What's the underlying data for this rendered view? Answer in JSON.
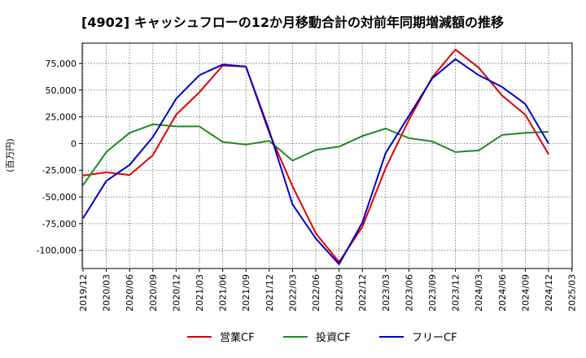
{
  "chart_data": {
    "type": "line",
    "title": "[4902]  キャッシュフローの12か月移動合計の対前年同期増減額の推移",
    "ylabel": "(百万円)",
    "xlabel": "",
    "x": [
      "2019/12",
      "2020/03",
      "2020/06",
      "2020/09",
      "2020/12",
      "2021/03",
      "2021/06",
      "2021/09",
      "2021/12",
      "2022/03",
      "2022/06",
      "2022/09",
      "2022/12",
      "2023/03",
      "2023/06",
      "2023/09",
      "2023/12",
      "2024/03",
      "2024/06",
      "2024/09",
      "2024/12"
    ],
    "x_ticks": [
      "2019/12",
      "2020/03",
      "2020/06",
      "2020/09",
      "2020/12",
      "2021/03",
      "2021/06",
      "2021/09",
      "2021/12",
      "2022/03",
      "2022/06",
      "2022/09",
      "2022/12",
      "2023/03",
      "2023/06",
      "2023/09",
      "2023/12",
      "2024/03",
      "2024/06",
      "2024/09",
      "2024/12",
      "2025/03"
    ],
    "y_ticks": [
      75000,
      50000,
      25000,
      0,
      -25000,
      -50000,
      -75000,
      -100000
    ],
    "y_tick_labels": [
      "75,000",
      "50,000",
      "25,000",
      "0",
      "-25,000",
      "-50,000",
      "-75,000",
      "-100,000"
    ],
    "ylim": [
      -117000,
      94000
    ],
    "grid": true,
    "legend_position": "bottom",
    "series": [
      {
        "name": "営業CF",
        "color": "#dd0000",
        "values": [
          -30000,
          -27000,
          -29500,
          -11000,
          27000,
          48000,
          73000,
          72000,
          10000,
          -40000,
          -84000,
          -111000,
          -78000,
          -23000,
          22000,
          62000,
          88000,
          71000,
          45000,
          27000,
          -10000
        ]
      },
      {
        "name": "投資CF",
        "color": "#228822",
        "values": [
          -39000,
          -8000,
          10000,
          18000,
          16000,
          16000,
          1500,
          -1000,
          2500,
          -16000,
          -6000,
          -3000,
          7000,
          14000,
          5000,
          2000,
          -8000,
          -6500,
          8000,
          10000,
          11000
        ]
      },
      {
        "name": "フリーCF",
        "color": "#0000cc",
        "values": [
          -70000,
          -35000,
          -20000,
          6000,
          42000,
          64000,
          74000,
          72000,
          12000,
          -57000,
          -89000,
          -113000,
          -74000,
          -9000,
          26000,
          61000,
          79000,
          64000,
          53000,
          37000,
          0
        ]
      }
    ]
  }
}
